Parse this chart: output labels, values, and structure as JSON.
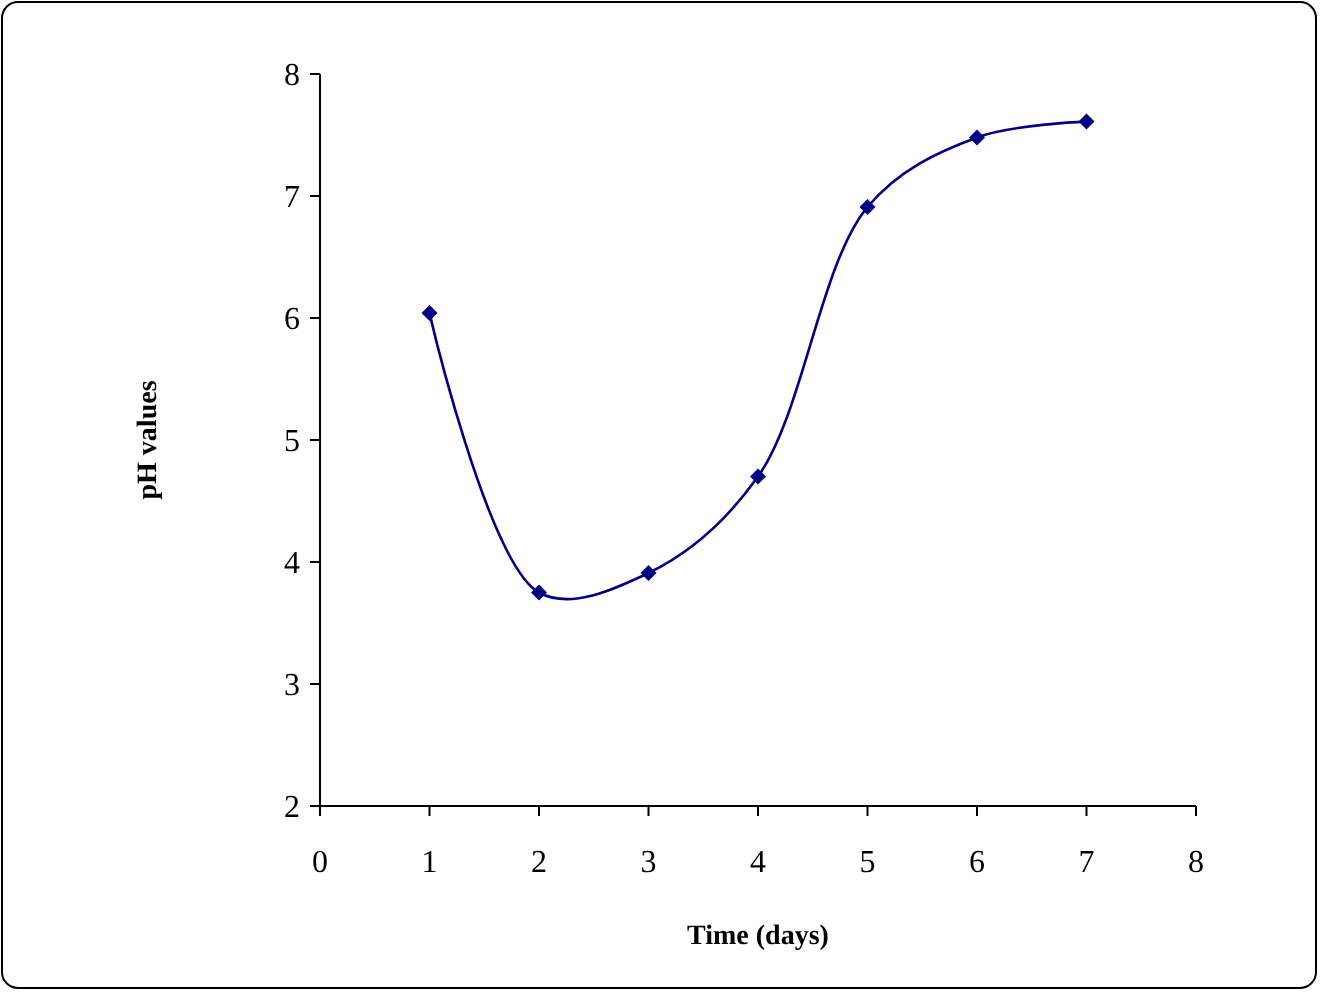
{
  "chart_data": {
    "type": "line",
    "xlabel": "Time (days)",
    "ylabel": "pH values",
    "x": [
      1,
      2,
      3,
      4,
      5,
      6,
      7
    ],
    "series": [
      {
        "color": "#000080",
        "values": [
          6.04,
          3.75,
          3.91,
          4.7,
          6.91,
          7.48,
          7.61
        ]
      }
    ],
    "xlim": [
      0,
      8
    ],
    "xticks": [
      0,
      1,
      2,
      3,
      4,
      5,
      6,
      7,
      8
    ],
    "ylim": [
      2,
      8
    ],
    "yticks": [
      2,
      3,
      4,
      5,
      6,
      7,
      8
    ],
    "grid": false,
    "marker": "diamond",
    "line_style": "solid"
  }
}
